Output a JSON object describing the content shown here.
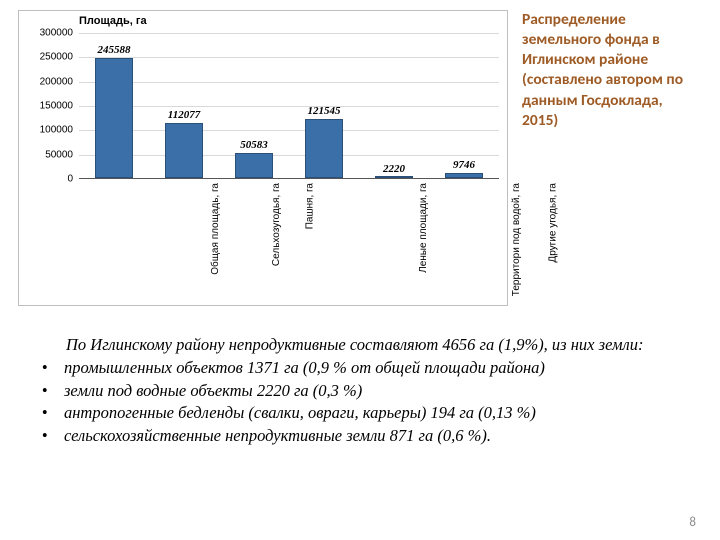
{
  "chart": {
    "type": "bar",
    "y_title": "Площадь, га",
    "y_title_fontsize": 11,
    "ylim": [
      0,
      300000
    ],
    "ytick_step": 50000,
    "yticks": [
      "0",
      "50000",
      "100000",
      "150000",
      "200000",
      "250000",
      "300000"
    ],
    "categories": [
      "Общая площадь, га",
      "Сельхозугодья, га",
      "Пашня, га",
      "Леные площади, га",
      "Территори под водой, га",
      "Другие угодья, га"
    ],
    "values": [
      245588,
      112077,
      50583,
      121545,
      2220,
      9746
    ],
    "value_labels": [
      "245588",
      "112077",
      "50583",
      "121545",
      "2220",
      "9746"
    ],
    "bar_color": "#3a6fa8",
    "bar_border_color": "#2a4f78",
    "grid_color": "#d9d9d9",
    "background_color": "#ffffff",
    "border_color": "#bfbfbf",
    "bar_width": 0.55,
    "xlabel_rotation": -90,
    "xlabel_fontsize": 10,
    "value_label_fontsize": 11
  },
  "title_right": "Распределение земельного фонда в Иглинском районе (составлено автором по данным Госдоклада, 2015)",
  "title_color": "#9e5b25",
  "title_fontsize": 15.5,
  "paragraph": "По Иглинскому району непродуктивные составляют 4656 га (1,9%), из них земли:",
  "bullets": [
    "промышленных объектов 1371 га (0,9 % от общей площади района)",
    "земли под водные объекты 2220 га (0,3 %)",
    "антропогенные бедленды (свалки, овраги, карьеры) 194 га (0,13 %)",
    "сельскохозяйственные непродуктивные земли 871 га (0,6 %)."
  ],
  "body_fontsize": 16.5,
  "page_number": "8"
}
